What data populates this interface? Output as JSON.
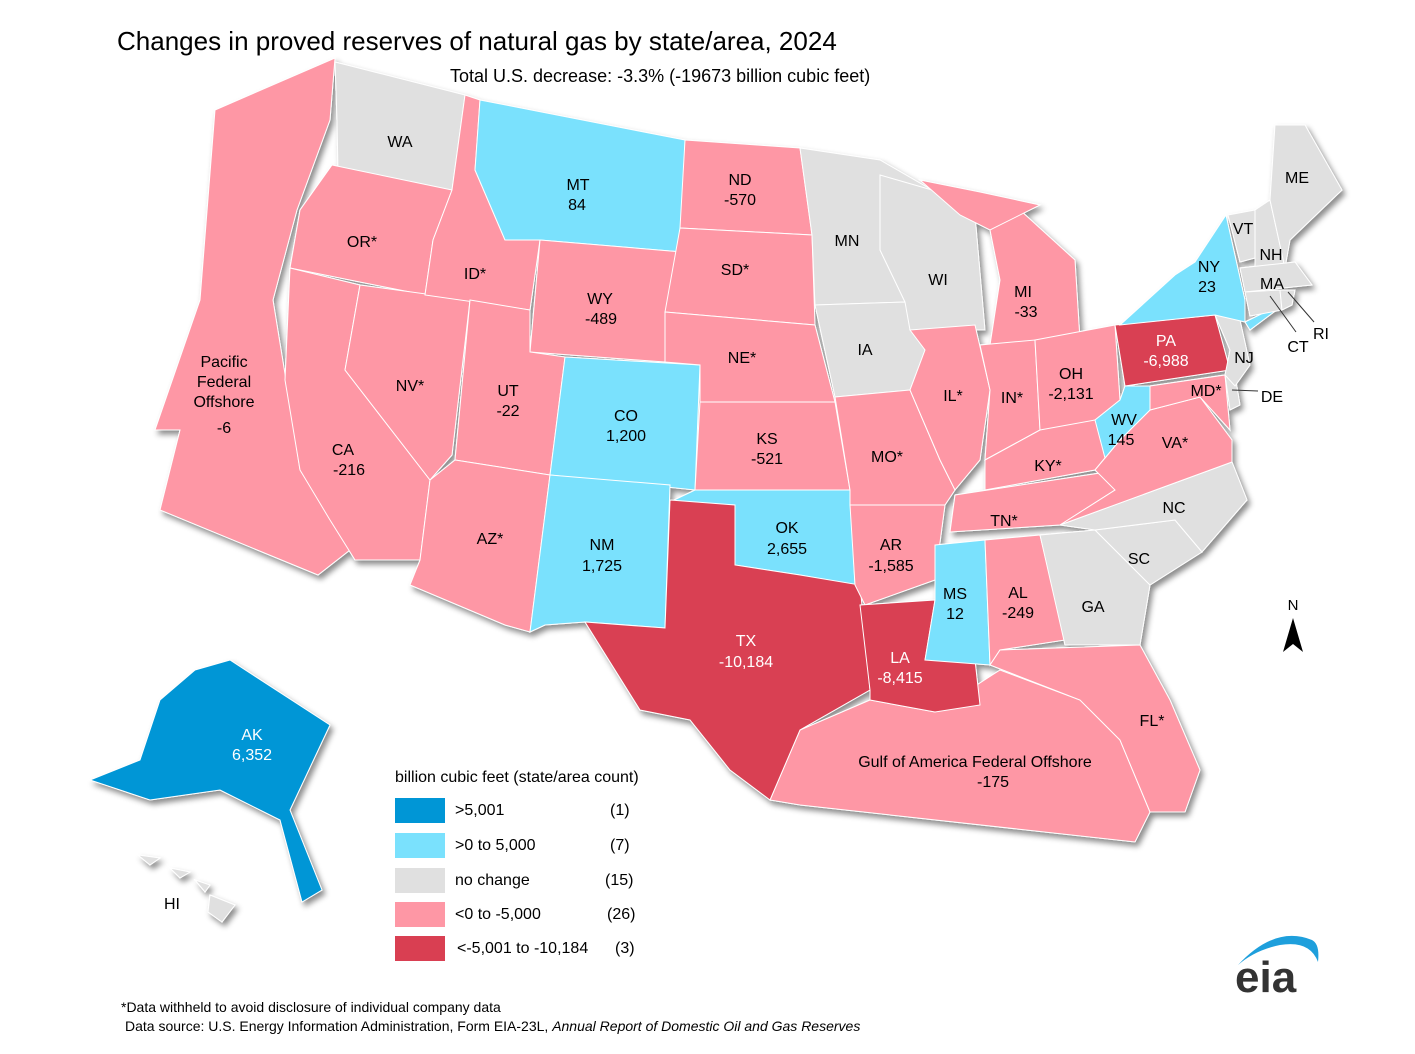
{
  "title": "Changes in proved reserves of natural gas by state/area, 2024",
  "subtitle": "Total U.S. decrease: -3.3% (-19673 billion cubic feet)",
  "colors": {
    "gt5001": "#0096d6",
    "pos": "#7ae1fd",
    "none": "#e0e0e0",
    "neg": "#fe97a5",
    "bigneg": "#d93f52"
  },
  "legend": {
    "title": "billion cubic feet (state/area count)",
    "items": [
      {
        "label": ">5,001",
        "count": "(1)",
        "color": "#0096d6"
      },
      {
        "label": ">0 to 5,000",
        "count": "(7)",
        "color": "#7ae1fd"
      },
      {
        "label": "no change",
        "count": "(15)",
        "color": "#e0e0e0"
      },
      {
        "label": "<0 to -5,000",
        "count": "(26)",
        "color": "#fe97a5"
      },
      {
        "label": "<-5,001 to -10,184",
        "count": "(3)",
        "color": "#d93f52"
      }
    ]
  },
  "areas": [
    {
      "id": "PFO",
      "name": "Pacific Federal Offshore",
      "value": "-6",
      "cat": "neg"
    },
    {
      "id": "GOA",
      "name": "Gulf of America Federal Offshore",
      "value": "-175",
      "cat": "neg"
    },
    {
      "id": "WA",
      "name": "WA",
      "value": "",
      "cat": "none"
    },
    {
      "id": "OR",
      "name": "OR*",
      "value": "",
      "cat": "neg"
    },
    {
      "id": "CA",
      "name": "CA",
      "value": "-216",
      "cat": "neg"
    },
    {
      "id": "NV",
      "name": "NV*",
      "value": "",
      "cat": "neg"
    },
    {
      "id": "ID",
      "name": "ID*",
      "value": "",
      "cat": "neg"
    },
    {
      "id": "MT",
      "name": "MT",
      "value": "84",
      "cat": "pos"
    },
    {
      "id": "WY",
      "name": "WY",
      "value": "-489",
      "cat": "neg"
    },
    {
      "id": "UT",
      "name": "UT",
      "value": "-22",
      "cat": "neg"
    },
    {
      "id": "AZ",
      "name": "AZ*",
      "value": "",
      "cat": "neg"
    },
    {
      "id": "CO",
      "name": "CO",
      "value": "1,200",
      "cat": "pos"
    },
    {
      "id": "NM",
      "name": "NM",
      "value": "1,725",
      "cat": "pos"
    },
    {
      "id": "ND",
      "name": "ND",
      "value": "-570",
      "cat": "neg"
    },
    {
      "id": "SD",
      "name": "SD*",
      "value": "",
      "cat": "neg"
    },
    {
      "id": "NE",
      "name": "NE*",
      "value": "",
      "cat": "neg"
    },
    {
      "id": "KS",
      "name": "KS",
      "value": "-521",
      "cat": "neg"
    },
    {
      "id": "OK",
      "name": "OK",
      "value": "2,655",
      "cat": "pos"
    },
    {
      "id": "TX",
      "name": "TX",
      "value": "-10,184",
      "cat": "bigneg"
    },
    {
      "id": "MN",
      "name": "MN",
      "value": "",
      "cat": "none"
    },
    {
      "id": "IA",
      "name": "IA",
      "value": "",
      "cat": "none"
    },
    {
      "id": "MO",
      "name": "MO*",
      "value": "",
      "cat": "neg"
    },
    {
      "id": "AR",
      "name": "AR",
      "value": "-1,585",
      "cat": "neg"
    },
    {
      "id": "LA",
      "name": "LA",
      "value": "-8,415",
      "cat": "bigneg"
    },
    {
      "id": "WI",
      "name": "WI",
      "value": "",
      "cat": "none"
    },
    {
      "id": "IL",
      "name": "IL*",
      "value": "",
      "cat": "neg"
    },
    {
      "id": "MI",
      "name": "MI",
      "value": "-33",
      "cat": "neg"
    },
    {
      "id": "IN",
      "name": "IN*",
      "value": "",
      "cat": "neg"
    },
    {
      "id": "OH",
      "name": "OH",
      "value": "-2,131",
      "cat": "neg"
    },
    {
      "id": "KY",
      "name": "KY*",
      "value": "",
      "cat": "neg"
    },
    {
      "id": "TN",
      "name": "TN*",
      "value": "",
      "cat": "neg"
    },
    {
      "id": "MS",
      "name": "MS",
      "value": "12",
      "cat": "pos"
    },
    {
      "id": "AL",
      "name": "AL",
      "value": "-249",
      "cat": "neg"
    },
    {
      "id": "GA",
      "name": "GA",
      "value": "",
      "cat": "none"
    },
    {
      "id": "FL",
      "name": "FL*",
      "value": "",
      "cat": "neg"
    },
    {
      "id": "SC",
      "name": "SC",
      "value": "",
      "cat": "none"
    },
    {
      "id": "NC",
      "name": "NC",
      "value": "",
      "cat": "none"
    },
    {
      "id": "VA",
      "name": "VA*",
      "value": "",
      "cat": "neg"
    },
    {
      "id": "WV",
      "name": "WV",
      "value": "145",
      "cat": "pos"
    },
    {
      "id": "PA",
      "name": "PA",
      "value": "-6,988",
      "cat": "bigneg"
    },
    {
      "id": "MD",
      "name": "MD*",
      "value": "",
      "cat": "neg"
    },
    {
      "id": "DE",
      "name": "DE",
      "value": "",
      "cat": "none"
    },
    {
      "id": "NJ",
      "name": "NJ",
      "value": "",
      "cat": "none"
    },
    {
      "id": "NY",
      "name": "NY",
      "value": "23",
      "cat": "pos"
    },
    {
      "id": "VT",
      "name": "VT",
      "value": "",
      "cat": "none"
    },
    {
      "id": "NH",
      "name": "NH",
      "value": "",
      "cat": "none"
    },
    {
      "id": "ME",
      "name": "ME",
      "value": "",
      "cat": "none"
    },
    {
      "id": "MA",
      "name": "MA",
      "value": "",
      "cat": "none"
    },
    {
      "id": "CT",
      "name": "CT",
      "value": "",
      "cat": "none"
    },
    {
      "id": "RI",
      "name": "RI",
      "value": "",
      "cat": "none"
    },
    {
      "id": "AK",
      "name": "AK",
      "value": "6,352",
      "cat": "gt5001"
    },
    {
      "id": "HI",
      "name": "HI",
      "value": "",
      "cat": "none"
    }
  ],
  "north_label": "N",
  "footnote": "*Data withheld to avoid disclosure of individual company data",
  "source_prefix": "Data source: U.S. Energy Information Administration, Form EIA-23L, ",
  "source_title": "Annual Report of Domestic Oil and Gas Reserves",
  "logo_text": "eia"
}
